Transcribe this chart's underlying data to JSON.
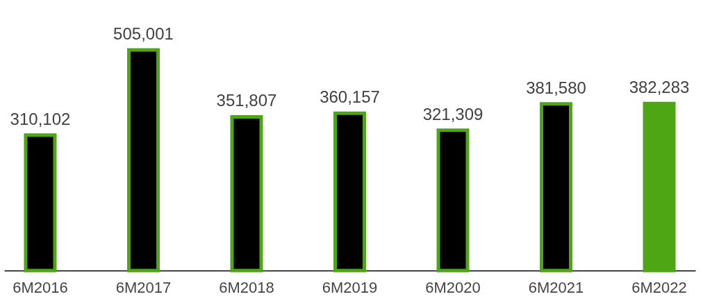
{
  "chart_data": {
    "type": "bar",
    "categories": [
      "6M2016",
      "6M2017",
      "6M2018",
      "6M2019",
      "6M2020",
      "6M2021",
      "6M2022"
    ],
    "values": [
      310102,
      505001,
      351807,
      360157,
      321309,
      381580,
      382283
    ],
    "value_labels": [
      "310,102",
      "505,001",
      "351,807",
      "360,157",
      "321,309",
      "381,580",
      "382,283"
    ],
    "colors": [
      "#000000",
      "#000000",
      "#000000",
      "#000000",
      "#000000",
      "#000000",
      "#4ea614"
    ],
    "color": "#4ea614"
  }
}
